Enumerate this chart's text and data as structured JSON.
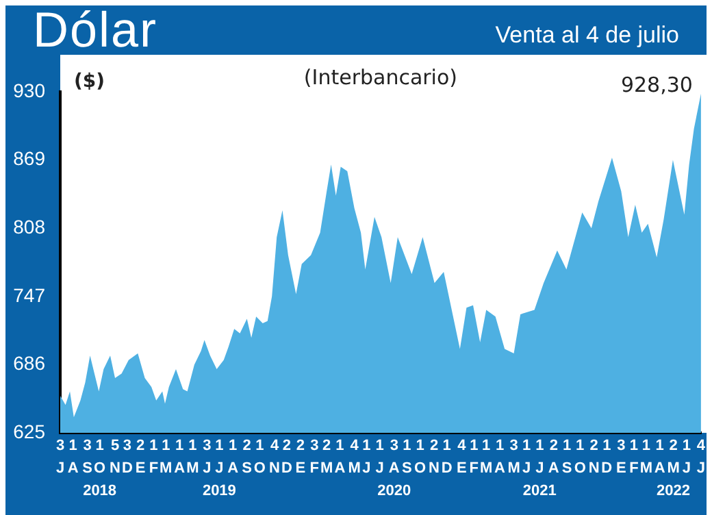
{
  "chart_data": {
    "type": "area",
    "title": "Dólar",
    "subtitle": "Venta al 4 de julio",
    "ylabel": "($)",
    "annotations": [
      "(Interbancario)",
      {
        "text": "928,30",
        "x": "2022-07-04",
        "y": 928.3
      }
    ],
    "x": [
      "2018-07-03",
      "2018-07-15",
      "2018-07-25",
      "2018-08-03",
      "2018-08-18",
      "2018-08-29",
      "2018-09-09",
      "2018-09-19",
      "2018-09-29",
      "2018-10-10",
      "2018-10-25",
      "2018-11-05",
      "2018-11-20",
      "2018-12-06",
      "2018-12-27",
      "2019-01-12",
      "2019-01-27",
      "2019-02-07",
      "2019-02-21",
      "2019-02-27",
      "2019-03-08",
      "2019-03-24",
      "2019-04-09",
      "2019-04-19",
      "2019-05-05",
      "2019-05-20",
      "2019-05-28",
      "2019-06-10",
      "2019-06-25",
      "2019-07-11",
      "2019-07-22",
      "2019-08-04",
      "2019-08-17",
      "2019-09-02",
      "2019-09-12",
      "2019-09-23",
      "2019-10-08",
      "2019-10-19",
      "2019-10-29",
      "2019-11-09",
      "2019-11-22",
      "2019-12-05",
      "2019-12-23",
      "2020-01-05",
      "2020-01-26",
      "2020-02-16",
      "2020-03-02",
      "2020-03-12",
      "2020-03-23",
      "2020-04-03",
      "2020-04-18",
      "2020-05-04",
      "2020-05-19",
      "2020-05-29",
      "2020-06-19",
      "2020-07-05",
      "2020-07-26",
      "2020-08-11",
      "2020-09-12",
      "2020-10-07",
      "2020-11-03",
      "2020-11-24",
      "2020-12-31",
      "2021-01-15",
      "2021-01-30",
      "2021-02-15",
      "2021-03-01",
      "2021-03-22",
      "2021-04-12",
      "2021-05-03",
      "2021-05-18",
      "2021-06-19",
      "2021-07-10",
      "2021-08-10",
      "2021-08-31",
      "2021-10-06",
      "2021-10-27",
      "2021-11-12",
      "2021-12-13",
      "2022-01-03",
      "2022-01-19",
      "2022-02-04",
      "2022-02-19",
      "2022-03-05",
      "2022-03-25",
      "2022-04-10",
      "2022-05-01",
      "2022-05-27",
      "2022-06-07",
      "2022-06-18",
      "2022-07-04"
    ],
    "series": [
      {
        "color": "#4eb0e2",
        "values": [
          658,
          650,
          662,
          639,
          654,
          670,
          694,
          678,
          662,
          682,
          694,
          674,
          678,
          690,
          696,
          674,
          666,
          654,
          662,
          651,
          666,
          682,
          664,
          662,
          686,
          698,
          708,
          694,
          682,
          690,
          702,
          718,
          714,
          727,
          710,
          729,
          723,
          725,
          747,
          800,
          824,
          784,
          749,
          776,
          784,
          804,
          841,
          865,
          837,
          863,
          859,
          826,
          804,
          771,
          818,
          800,
          759,
          800,
          767,
          800,
          759,
          769,
          700,
          737,
          739,
          706,
          735,
          729,
          700,
          696,
          731,
          735,
          759,
          788,
          771,
          822,
          808,
          832,
          871,
          841,
          800,
          829,
          804,
          812,
          782,
          816,
          869,
          820,
          865,
          897,
          928.3
        ]
      }
    ],
    "xlim": [
      "2018-07-03",
      "2022-07-04"
    ],
    "xticks": [
      {
        "value": "2018-07-03",
        "label": "3\nJ"
      },
      {
        "value": "2018-08-01",
        "label": "1\nA"
      },
      {
        "value": "2018-09-03",
        "label": "3\nS"
      },
      {
        "value": "2018-10-01",
        "label": "1\nO\n2018"
      },
      {
        "value": "2018-11-05",
        "label": "5\nN"
      },
      {
        "value": "2018-12-03",
        "label": "3\nD"
      },
      {
        "value": "2019-01-02",
        "label": "2\nE"
      },
      {
        "value": "2019-02-01",
        "label": "1\nF"
      },
      {
        "value": "2019-03-01",
        "label": "1\nM"
      },
      {
        "value": "2019-04-01",
        "label": "1\nA"
      },
      {
        "value": "2019-05-01",
        "label": "1\nM"
      },
      {
        "value": "2019-06-03",
        "label": "3\nJ"
      },
      {
        "value": "2019-07-01",
        "label": "1\nJ\n2019"
      },
      {
        "value": "2019-08-01",
        "label": "1\nA"
      },
      {
        "value": "2019-09-02",
        "label": "2\nS"
      },
      {
        "value": "2019-10-01",
        "label": "1\nO"
      },
      {
        "value": "2019-11-04",
        "label": "4\nN"
      },
      {
        "value": "2019-12-02",
        "label": "2\nD"
      },
      {
        "value": "2020-01-02",
        "label": "2\nE"
      },
      {
        "value": "2020-02-03",
        "label": "3\nF"
      },
      {
        "value": "2020-03-02",
        "label": "2\nM"
      },
      {
        "value": "2020-04-01",
        "label": "1\nA"
      },
      {
        "value": "2020-05-04",
        "label": "4\nM"
      },
      {
        "value": "2020-06-01",
        "label": "1\nJ"
      },
      {
        "value": "2020-07-01",
        "label": "1\nJ"
      },
      {
        "value": "2020-08-03",
        "label": "3\nA\n2020"
      },
      {
        "value": "2020-09-01",
        "label": "1\nS"
      },
      {
        "value": "2020-10-01",
        "label": "1\nO"
      },
      {
        "value": "2020-11-02",
        "label": "2\nN"
      },
      {
        "value": "2020-12-01",
        "label": "1\nD"
      },
      {
        "value": "2021-01-04",
        "label": "4\nE"
      },
      {
        "value": "2021-02-01",
        "label": "1\nF"
      },
      {
        "value": "2021-03-01",
        "label": "1\nM"
      },
      {
        "value": "2021-04-01",
        "label": "1\nA"
      },
      {
        "value": "2021-05-03",
        "label": "3\nM"
      },
      {
        "value": "2021-06-01",
        "label": "1\nJ"
      },
      {
        "value": "2021-07-01",
        "label": "1\nJ\n2021"
      },
      {
        "value": "2021-08-02",
        "label": "2\nA"
      },
      {
        "value": "2021-09-01",
        "label": "1\nS"
      },
      {
        "value": "2021-10-01",
        "label": "1\nO"
      },
      {
        "value": "2021-11-02",
        "label": "2\nN"
      },
      {
        "value": "2021-12-01",
        "label": "1\nD"
      },
      {
        "value": "2022-01-03",
        "label": "3\nE"
      },
      {
        "value": "2022-02-01",
        "label": "1\nF"
      },
      {
        "value": "2022-03-01",
        "label": "1\nM"
      },
      {
        "value": "2022-04-01",
        "label": "1\nA"
      },
      {
        "value": "2022-05-02",
        "label": "2\nM\n2022"
      },
      {
        "value": "2022-06-01",
        "label": "1\nJ"
      },
      {
        "value": "2022-07-04",
        "label": "4\nJ"
      }
    ],
    "ylim": [
      625,
      930
    ],
    "yticks": [
      625,
      686,
      747,
      808,
      869,
      930
    ],
    "grid": false,
    "legend": false,
    "marker": "none"
  }
}
